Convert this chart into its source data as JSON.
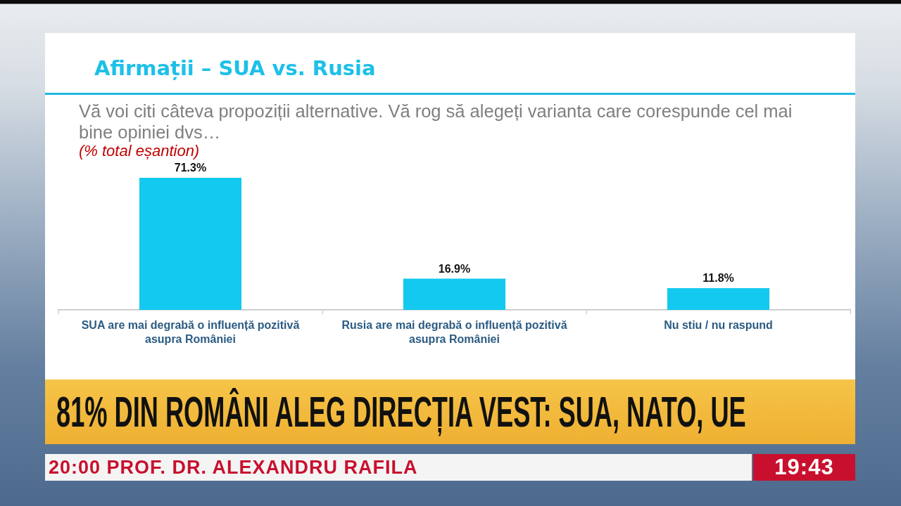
{
  "chart_data": {
    "type": "bar",
    "title": "Afirmații – SUA vs. Rusia",
    "subtitle": "Vă voi citi câteva propoziții alternative. Vă rog să alegeți varianta care corespunde cel mai bine opiniei dvs…",
    "ylabel": "(% total eșantion)",
    "categories": [
      "SUA are mai degrabă o influență pozitivă asupra României",
      "Rusia are mai degrabă o influență pozitivă asupra României",
      "Nu stiu / nu raspund"
    ],
    "values": [
      71.3,
      16.9,
      11.8
    ],
    "value_labels": [
      "71.3%",
      "16.9%",
      "11.8%"
    ],
    "color": "#13c9ef",
    "annotations": [
      "81% DIN ROMÂNI ALEG DIRECȚIA VEST: SUA, NATO, UE",
      "20:00 PROF. DR. ALEXANDRU RAFILA",
      "19:43"
    ]
  }
}
